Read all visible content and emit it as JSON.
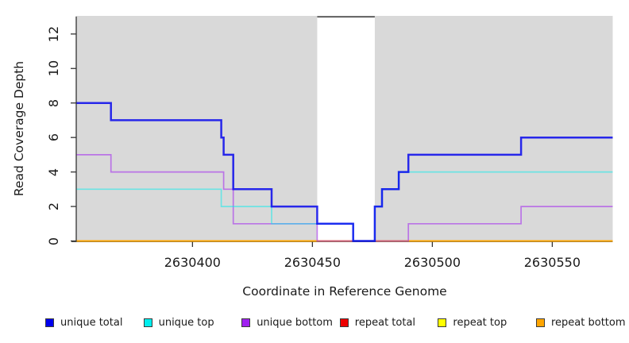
{
  "chart_data": {
    "type": "line",
    "subtype": "step",
    "title": "",
    "xlabel": "Coordinate in Reference Genome",
    "ylabel": "Read Coverage Depth",
    "x_range": [
      2630351.7,
      2630575.2
    ],
    "y_range": [
      0,
      13
    ],
    "x_ticks": {
      "values": [
        2630400,
        2630450,
        2630500,
        2630550
      ],
      "labels": [
        "2630400",
        "2630450",
        "2630500",
        "2630550"
      ]
    },
    "y_ticks": {
      "values": [
        0,
        2,
        4,
        6,
        8,
        10,
        12
      ],
      "labels": [
        "0",
        "2",
        "4",
        "6",
        "8",
        "10",
        "12"
      ]
    },
    "grid": false,
    "panel_bg": "#d9d9d9",
    "axis_color": "#333333",
    "text_color": "#1a1a1a",
    "highlight_region": {
      "x_start": 2630452,
      "x_end": 2630476,
      "fill": "#ffffff",
      "top_border_color": "#5e5e5e",
      "top_border_y": 13
    },
    "legend_position": "bottom",
    "series": [
      {
        "name": "unique total",
        "legend_color": "#0000ee",
        "stroke": "rgba(0,0,238,0.82)",
        "line_width": 2.5,
        "z": 6,
        "points": [
          [
            2630351.7,
            8
          ],
          [
            2630366,
            8
          ],
          [
            2630366,
            7
          ],
          [
            2630412,
            7
          ],
          [
            2630412,
            6
          ],
          [
            2630413,
            6
          ],
          [
            2630413,
            5
          ],
          [
            2630417,
            5
          ],
          [
            2630417,
            3
          ],
          [
            2630433,
            3
          ],
          [
            2630433,
            2
          ],
          [
            2630452,
            2
          ],
          [
            2630452,
            1
          ],
          [
            2630467,
            1
          ],
          [
            2630467,
            0
          ],
          [
            2630476,
            0
          ],
          [
            2630476,
            2
          ],
          [
            2630479,
            2
          ],
          [
            2630479,
            3
          ],
          [
            2630486,
            3
          ],
          [
            2630486,
            4
          ],
          [
            2630490,
            4
          ],
          [
            2630490,
            5
          ],
          [
            2630537,
            5
          ],
          [
            2630537,
            6
          ],
          [
            2630575.2,
            6
          ]
        ]
      },
      {
        "name": "unique top",
        "legend_color": "#00eeee",
        "stroke": "rgba(0,238,238,0.5)",
        "line_width": 1.7,
        "z": 5,
        "points": [
          [
            2630351.7,
            3
          ],
          [
            2630412,
            3
          ],
          [
            2630412,
            2
          ],
          [
            2630433,
            2
          ],
          [
            2630433,
            1
          ],
          [
            2630467,
            1
          ],
          [
            2630467,
            0
          ],
          [
            2630476,
            0
          ],
          [
            2630476,
            2
          ],
          [
            2630479,
            2
          ],
          [
            2630479,
            3
          ],
          [
            2630486,
            3
          ],
          [
            2630486,
            4
          ],
          [
            2630575.2,
            4
          ]
        ]
      },
      {
        "name": "unique bottom",
        "legend_color": "#a020f0",
        "stroke": "rgba(160,32,240,0.55)",
        "line_width": 1.7,
        "z": 4,
        "points": [
          [
            2630351.7,
            5
          ],
          [
            2630366,
            5
          ],
          [
            2630366,
            4
          ],
          [
            2630413,
            4
          ],
          [
            2630413,
            3
          ],
          [
            2630417,
            3
          ],
          [
            2630417,
            1
          ],
          [
            2630452,
            1
          ],
          [
            2630452,
            0
          ],
          [
            2630490,
            0
          ],
          [
            2630490,
            1
          ],
          [
            2630537,
            1
          ],
          [
            2630537,
            2
          ],
          [
            2630575.2,
            2
          ]
        ]
      },
      {
        "name": "repeat total",
        "legend_color": "#ee0000",
        "stroke": "rgba(238,0,0,0.6)",
        "line_width": 1.7,
        "z": 1,
        "points": [
          [
            2630351.7,
            0
          ],
          [
            2630575.2,
            0
          ]
        ]
      },
      {
        "name": "repeat top",
        "legend_color": "#ffff00",
        "stroke": "rgba(255,255,0,0.6)",
        "line_width": 1.7,
        "z": 2,
        "points": [
          [
            2630351.7,
            0
          ],
          [
            2630575.2,
            0
          ]
        ]
      },
      {
        "name": "repeat bottom",
        "legend_color": "#ffa500",
        "stroke": "rgba(255,165,0,0.95)",
        "line_width": 2.1,
        "z": 3,
        "points": [
          [
            2630351.7,
            0
          ],
          [
            2630575.2,
            0
          ]
        ]
      }
    ]
  }
}
